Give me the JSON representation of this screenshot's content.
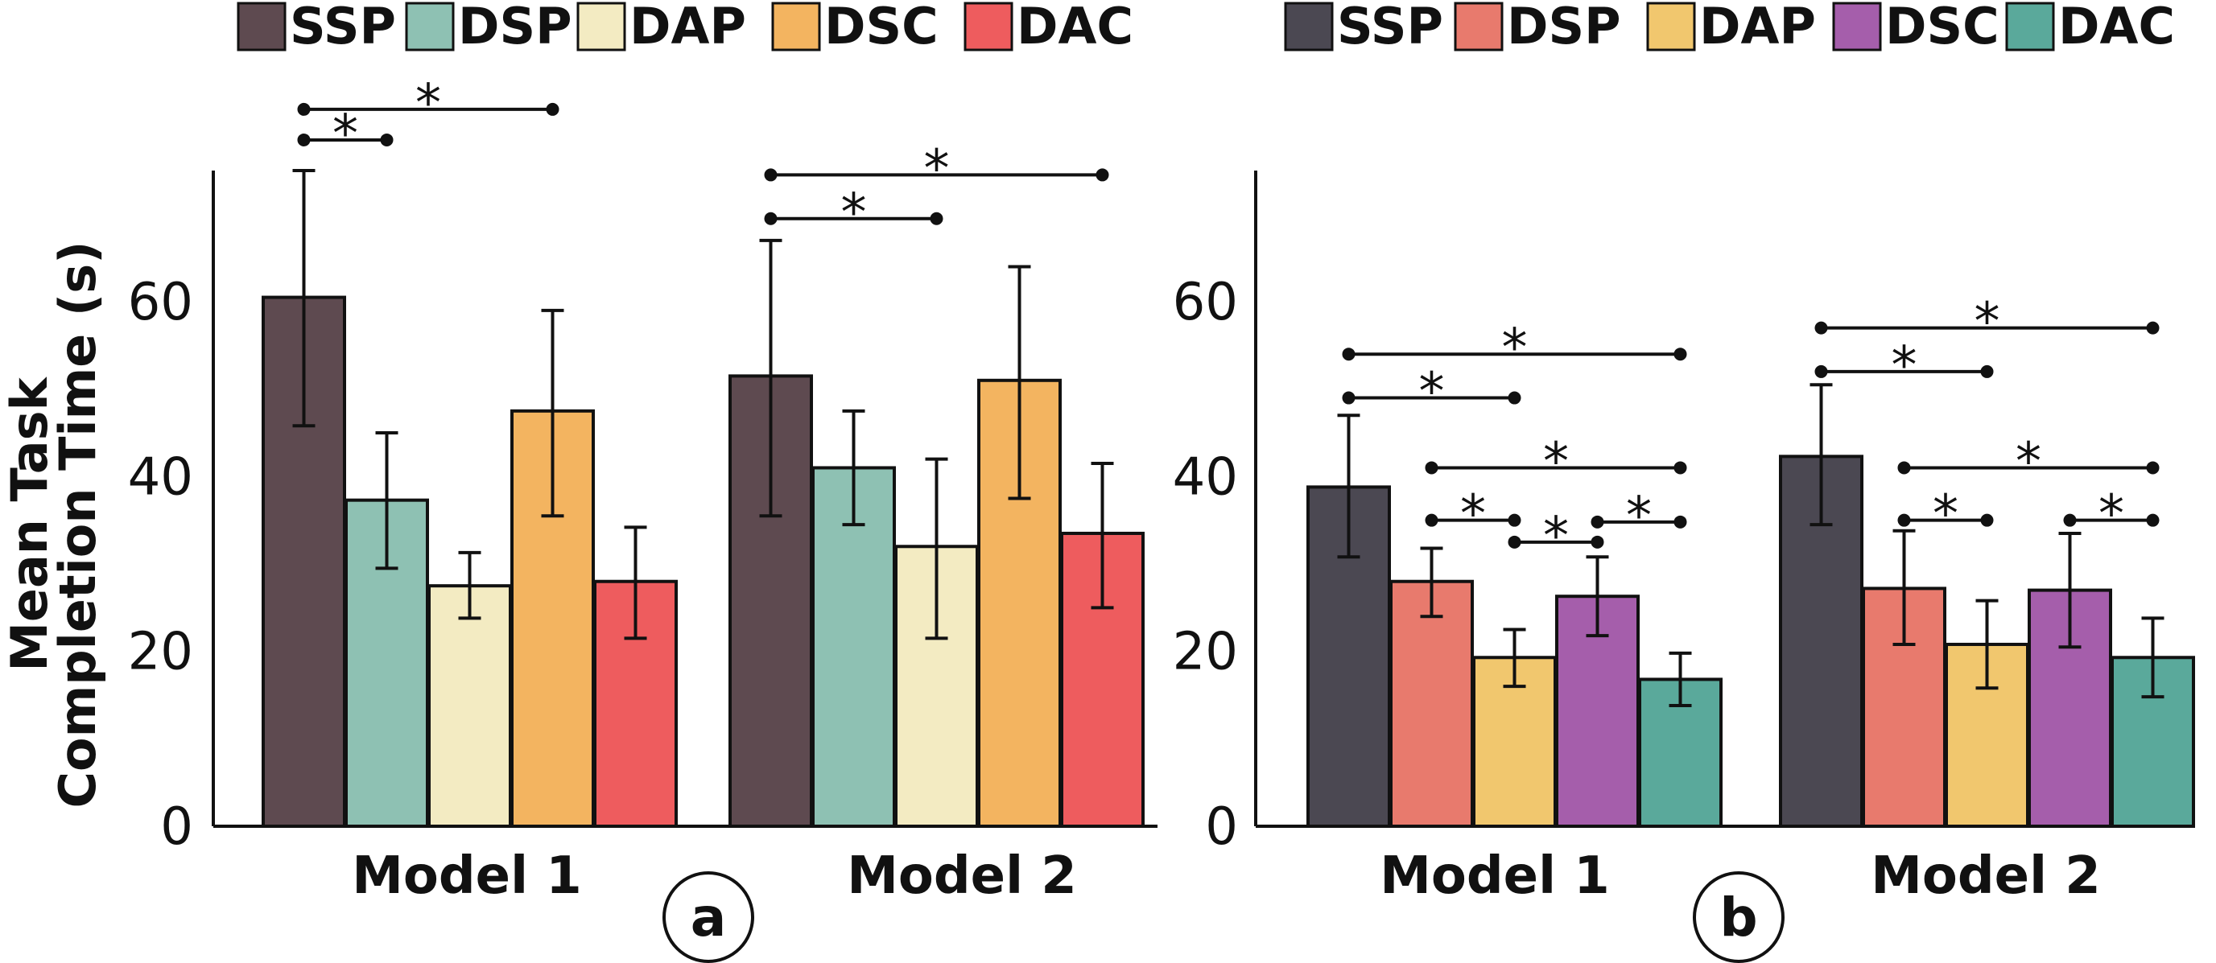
{
  "ylabel_line1": "Mean Task",
  "ylabel_line2": "Completion Time (s)",
  "chart_data": [
    {
      "type": "bar",
      "panel_label": "a",
      "ylabel": "Mean Task Completion Time (s)",
      "ylim": [
        0,
        75
      ],
      "yticks": [
        "0",
        "20",
        "40",
        "60"
      ],
      "categories": [
        "Model 1",
        "Model 2"
      ],
      "series": [
        {
          "name": "SSP",
          "color": "#5e4a50",
          "values": [
            60.5,
            51.5
          ],
          "err_low": [
            45.8,
            35.5
          ],
          "err_high": [
            75.0,
            67.0
          ]
        },
        {
          "name": "DSP",
          "color": "#8ec1b3",
          "values": [
            37.3,
            41.0
          ],
          "err_low": [
            29.5,
            34.5
          ],
          "err_high": [
            45.0,
            47.5
          ]
        },
        {
          "name": "DAP",
          "color": "#f3ebc2",
          "values": [
            27.5,
            32.0
          ],
          "err_low": [
            23.8,
            21.5
          ],
          "err_high": [
            31.3,
            42.0
          ]
        },
        {
          "name": "DSC",
          "color": "#f3b460",
          "values": [
            47.5,
            51.0
          ],
          "err_low": [
            35.5,
            37.5
          ],
          "err_high": [
            59.0,
            64.0
          ]
        },
        {
          "name": "DAC",
          "color": "#ee5c5e",
          "values": [
            28.0,
            33.5
          ],
          "err_low": [
            21.5,
            25.0
          ],
          "err_high": [
            34.2,
            41.5
          ]
        }
      ],
      "significance": [
        {
          "group": "Model 1",
          "from": "SSP",
          "to": "DSP",
          "label": "*",
          "level": 78.5
        },
        {
          "group": "Model 1",
          "from": "SSP",
          "to": "DSC",
          "label": "*",
          "level": 82.0
        },
        {
          "group": "Model 2",
          "from": "SSP",
          "to": "DAP",
          "label": "*",
          "level": 69.5
        },
        {
          "group": "Model 2",
          "from": "SSP",
          "to": "DAC",
          "label": "*",
          "level": 74.5
        }
      ]
    },
    {
      "type": "bar",
      "panel_label": "b",
      "ylabel": "",
      "ylim": [
        0,
        75
      ],
      "yticks": [
        "0",
        "20",
        "40",
        "60"
      ],
      "categories": [
        "Model 1",
        "Model 2"
      ],
      "series": [
        {
          "name": "SSP",
          "color": "#4b4852",
          "values": [
            38.8,
            42.3
          ],
          "err_low": [
            30.8,
            34.5
          ],
          "err_high": [
            47.0,
            50.5
          ]
        },
        {
          "name": "DSP",
          "color": "#e87a6d",
          "values": [
            28.0,
            27.2
          ],
          "err_low": [
            24.0,
            20.8
          ],
          "err_high": [
            31.8,
            33.8
          ]
        },
        {
          "name": "DAP",
          "color": "#f1c76e",
          "values": [
            19.3,
            20.8
          ],
          "err_low": [
            16.0,
            15.8
          ],
          "err_high": [
            22.5,
            25.8
          ]
        },
        {
          "name": "DSC",
          "color": "#a55eab",
          "values": [
            26.3,
            27.0
          ],
          "err_low": [
            21.8,
            20.5
          ],
          "err_high": [
            30.8,
            33.5
          ]
        },
        {
          "name": "DAC",
          "color": "#5aa99b",
          "values": [
            16.8,
            19.3
          ],
          "err_low": [
            13.8,
            14.8
          ],
          "err_high": [
            19.8,
            23.8
          ]
        }
      ],
      "significance": [
        {
          "group": "Model 1",
          "from": "SSP",
          "to": "DAP",
          "label": "*",
          "level": 49.0
        },
        {
          "group": "Model 1",
          "from": "SSP",
          "to": "DAC",
          "label": "*",
          "level": 54.0
        },
        {
          "group": "Model 1",
          "from": "DSP",
          "to": "DAP",
          "label": "*",
          "level": 35.0
        },
        {
          "group": "Model 1",
          "from": "DAP",
          "to": "DSC",
          "label": "*",
          "level": 32.5
        },
        {
          "group": "Model 1",
          "from": "DSC",
          "to": "DAC",
          "label": "*",
          "level": 34.8
        },
        {
          "group": "Model 1",
          "from": "DSP",
          "to": "DAC",
          "label": "*",
          "level": 41.0
        },
        {
          "group": "Model 2",
          "from": "SSP",
          "to": "DAP",
          "label": "*",
          "level": 52.0
        },
        {
          "group": "Model 2",
          "from": "SSP",
          "to": "DAC",
          "label": "*",
          "level": 57.0
        },
        {
          "group": "Model 2",
          "from": "DSP",
          "to": "DAP",
          "label": "*",
          "level": 35.0
        },
        {
          "group": "Model 2",
          "from": "DSC",
          "to": "DAC",
          "label": "*",
          "level": 35.0
        },
        {
          "group": "Model 2",
          "from": "DSP",
          "to": "DAC",
          "label": "*",
          "level": 41.0
        }
      ]
    }
  ]
}
